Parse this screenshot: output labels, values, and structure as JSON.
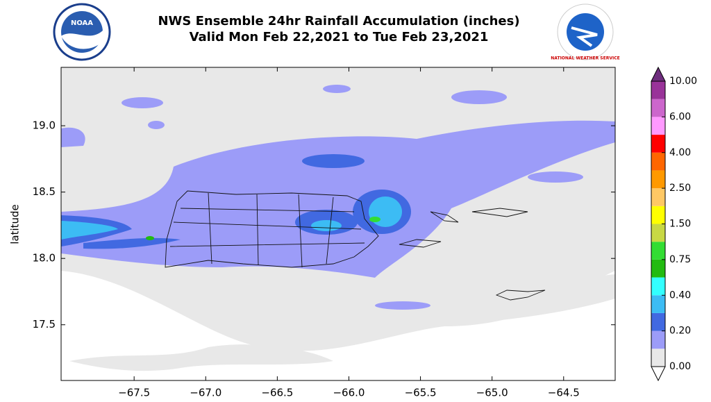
{
  "logos": {
    "left": "NOAA",
    "right": "NATIONAL WEATHER SERVICE"
  },
  "chart_data": {
    "type": "contour-map",
    "title": "NWS Ensemble 24hr Rainfall Accumulation (inches)",
    "subtitle": "Valid Mon Feb 22,2021 to Tue Feb 23,2021",
    "y_label": "latitude",
    "xlim": [
      -68.01,
      -64.14
    ],
    "ylim": [
      17.08,
      19.44
    ],
    "xticks": [
      {
        "value": -67.5,
        "label": "−67.5"
      },
      {
        "value": -67,
        "label": "−67.0"
      },
      {
        "value": -66.5,
        "label": "−66.5"
      },
      {
        "value": -66,
        "label": "−66.0"
      },
      {
        "value": -65.5,
        "label": "−65.5"
      },
      {
        "value": -65,
        "label": "−65.0"
      },
      {
        "value": -64.5,
        "label": "−64.5"
      }
    ],
    "yticks": [
      17.5,
      {
        "value": 18,
        "label": "18.0"
      },
      18.5,
      {
        "value": 19,
        "label": "19.0"
      }
    ],
    "colorbar": {
      "levels": [
        {
          "value": 0,
          "label": "0.00"
        },
        {
          "value": 0.2,
          "label": "0.20"
        },
        {
          "value": 0.4,
          "label": "0.40"
        },
        0.75,
        {
          "value": 1.5,
          "label": "1.50"
        },
        {
          "value": 2.5,
          "label": "2.50"
        },
        {
          "value": 4,
          "label": "4.00"
        },
        {
          "value": 6,
          "label": "6.00"
        },
        {
          "value": 10,
          "label": "10.00"
        }
      ],
      "colors": [
        "#e8e8e8",
        "#9c9cf8",
        "#4169e1",
        "#3cbcf4",
        "#33ffff",
        "#22bb11",
        "#33dd33",
        "#c8d844",
        "#ffff00",
        "#ffc864",
        "#ff9900",
        "#ff6600",
        "#ff0000",
        "#ff99ff",
        "#cc66cc",
        "#993399"
      ],
      "over_color": "#6e2d7d",
      "under_color": "#ffffff"
    }
  }
}
